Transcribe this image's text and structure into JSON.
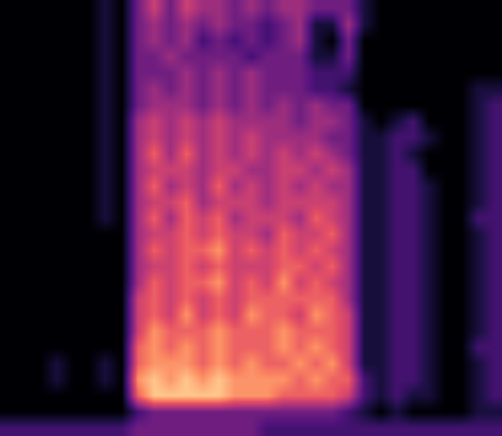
{
  "chart_data": {
    "type": "heatmap",
    "tick_labels": false,
    "zlim": [
      0,
      9
    ],
    "cells": [
      [
        0,
        0,
        0,
        0,
        0,
        0,
        1,
        0,
        3,
        5,
        3,
        5,
        4,
        4,
        3,
        4,
        3,
        4,
        4,
        3,
        3,
        3,
        1,
        0,
        0,
        0,
        0,
        0,
        0,
        0,
        0
      ],
      [
        0,
        0,
        0,
        0,
        0,
        0,
        1,
        0,
        3,
        4,
        3,
        4,
        3,
        4,
        3,
        3,
        2,
        3,
        4,
        1,
        1,
        4,
        1,
        0,
        0,
        0,
        0,
        0,
        0,
        0,
        0
      ],
      [
        0,
        0,
        0,
        0,
        0,
        0,
        1,
        0,
        3,
        4,
        3,
        4,
        2,
        3,
        2,
        3,
        2,
        3,
        4,
        1,
        0,
        3,
        0,
        0,
        0,
        0,
        0,
        0,
        0,
        0,
        0
      ],
      [
        0,
        0,
        0,
        0,
        0,
        0,
        1,
        0,
        3,
        3,
        4,
        3,
        3,
        3,
        3,
        2,
        3,
        3,
        3,
        1,
        1,
        3,
        0,
        0,
        0,
        0,
        0,
        0,
        0,
        0,
        0
      ],
      [
        0,
        0,
        0,
        0,
        0,
        0,
        1,
        0,
        3,
        3,
        3,
        4,
        3,
        4,
        3,
        4,
        3,
        3,
        3,
        2,
        2,
        2,
        0,
        0,
        0,
        0,
        0,
        0,
        0,
        0,
        0
      ],
      [
        0,
        0,
        0,
        0,
        0,
        0,
        1,
        0,
        3,
        4,
        3,
        4,
        3,
        4,
        3,
        4,
        3,
        3,
        3,
        2,
        2,
        1,
        0,
        0,
        0,
        0,
        0,
        0,
        0,
        1,
        1
      ],
      [
        0,
        0,
        0,
        0,
        0,
        0,
        1,
        0,
        3,
        4,
        4,
        4,
        3,
        4,
        3,
        4,
        3,
        4,
        3,
        4,
        3,
        3,
        0,
        0,
        0,
        0,
        0,
        0,
        0,
        1,
        2
      ],
      [
        0,
        0,
        0,
        0,
        0,
        0,
        1,
        0,
        4,
        5,
        4,
        5,
        4,
        5,
        4,
        4,
        4,
        4,
        3,
        4,
        4,
        3,
        1,
        0,
        1,
        2,
        0,
        0,
        0,
        1,
        2
      ],
      [
        0,
        0,
        0,
        0,
        0,
        0,
        1,
        0,
        4,
        5,
        4,
        5,
        4,
        5,
        4,
        5,
        4,
        4,
        4,
        4,
        3,
        3,
        1,
        1,
        2,
        2,
        1,
        0,
        0,
        1,
        2
      ],
      [
        0,
        0,
        0,
        0,
        0,
        0,
        1,
        0,
        4,
        6,
        4,
        6,
        4,
        5,
        4,
        5,
        4,
        5,
        4,
        5,
        4,
        3,
        1,
        1,
        2,
        1,
        0,
        0,
        0,
        1,
        2
      ],
      [
        0,
        0,
        0,
        0,
        0,
        0,
        1,
        0,
        4,
        5,
        5,
        5,
        4,
        5,
        5,
        4,
        4,
        5,
        5,
        4,
        5,
        4,
        1,
        1,
        2,
        2,
        0,
        0,
        0,
        1,
        2
      ],
      [
        0,
        0,
        0,
        0,
        0,
        0,
        1,
        0,
        4,
        6,
        4,
        5,
        4,
        6,
        4,
        5,
        4,
        5,
        4,
        5,
        4,
        4,
        1,
        1,
        2,
        2,
        1,
        0,
        0,
        1,
        2
      ],
      [
        0,
        0,
        0,
        0,
        0,
        0,
        1,
        0,
        4,
        5,
        5,
        6,
        4,
        5,
        5,
        5,
        4,
        5,
        5,
        5,
        5,
        4,
        1,
        1,
        2,
        2,
        1,
        0,
        0,
        1,
        2
      ],
      [
        0,
        0,
        0,
        0,
        0,
        0,
        1,
        0,
        4,
        6,
        4,
        6,
        5,
        6,
        4,
        5,
        5,
        5,
        4,
        6,
        5,
        4,
        1,
        1,
        2,
        2,
        1,
        0,
        0,
        2,
        2
      ],
      [
        0,
        0,
        0,
        0,
        0,
        0,
        0,
        0,
        4,
        5,
        5,
        6,
        5,
        6,
        5,
        5,
        4,
        6,
        5,
        5,
        6,
        4,
        1,
        1,
        2,
        2,
        1,
        0,
        0,
        1,
        2
      ],
      [
        0,
        0,
        0,
        0,
        0,
        0,
        0,
        0,
        4,
        6,
        5,
        6,
        6,
        7,
        5,
        6,
        5,
        6,
        5,
        6,
        5,
        4,
        1,
        1,
        2,
        2,
        1,
        0,
        0,
        1,
        2
      ],
      [
        0,
        0,
        0,
        0,
        0,
        0,
        0,
        0,
        4,
        5,
        5,
        6,
        5,
        6,
        5,
        5,
        5,
        6,
        6,
        5,
        6,
        4,
        1,
        1,
        2,
        2,
        1,
        0,
        0,
        1,
        2
      ],
      [
        0,
        0,
        0,
        0,
        0,
        0,
        0,
        0,
        4,
        6,
        5,
        6,
        6,
        7,
        5,
        6,
        5,
        7,
        5,
        6,
        5,
        4,
        1,
        1,
        2,
        2,
        1,
        0,
        0,
        1,
        2
      ],
      [
        0,
        0,
        0,
        0,
        0,
        0,
        0,
        0,
        5,
        6,
        5,
        6,
        5,
        6,
        5,
        6,
        6,
        6,
        6,
        6,
        6,
        4,
        1,
        1,
        2,
        2,
        1,
        0,
        0,
        1,
        2
      ],
      [
        0,
        0,
        0,
        0,
        0,
        0,
        0,
        0,
        5,
        6,
        5,
        7,
        5,
        6,
        5,
        7,
        6,
        6,
        5,
        7,
        6,
        5,
        1,
        1,
        2,
        2,
        1,
        0,
        0,
        1,
        2
      ],
      [
        0,
        0,
        0,
        0,
        0,
        0,
        0,
        0,
        5,
        7,
        6,
        6,
        6,
        7,
        6,
        6,
        6,
        7,
        6,
        6,
        6,
        5,
        1,
        1,
        2,
        2,
        1,
        0,
        0,
        1,
        2
      ],
      [
        0,
        0,
        0,
        0,
        0,
        0,
        0,
        0,
        6,
        7,
        6,
        7,
        6,
        7,
        6,
        6,
        6,
        7,
        6,
        7,
        6,
        5,
        1,
        1,
        2,
        2,
        1,
        0,
        0,
        2,
        2
      ],
      [
        0,
        0,
        0,
        1,
        0,
        0,
        1,
        0,
        6,
        7,
        7,
        7,
        6,
        7,
        6,
        7,
        6,
        6,
        7,
        6,
        7,
        5,
        1,
        1,
        2,
        2,
        1,
        0,
        0,
        1,
        2
      ],
      [
        0,
        0,
        0,
        1,
        0,
        0,
        1,
        0,
        7,
        8,
        7,
        8,
        7,
        8,
        7,
        7,
        7,
        7,
        6,
        7,
        6,
        6,
        2,
        1,
        2,
        2,
        1,
        0,
        0,
        1,
        2
      ],
      [
        0,
        0,
        0,
        0,
        0,
        0,
        0,
        0,
        6,
        8,
        8,
        8,
        8,
        8,
        7,
        7,
        7,
        6,
        6,
        6,
        6,
        5,
        2,
        1,
        2,
        1,
        1,
        0,
        0,
        1,
        2
      ],
      [
        0,
        0,
        0,
        0,
        0,
        0,
        0,
        0,
        2,
        3,
        3,
        3,
        3,
        3,
        3,
        3,
        3,
        3,
        3,
        3,
        3,
        2,
        1,
        0,
        1,
        0,
        0,
        0,
        0,
        1,
        1
      ],
      [
        2,
        2,
        2,
        2,
        2,
        2,
        2,
        2,
        3,
        3,
        3,
        3,
        3,
        3,
        3,
        3,
        2,
        2,
        2,
        2,
        2,
        2,
        2,
        2,
        2,
        2,
        2,
        2,
        2,
        2,
        2
      ]
    ]
  }
}
